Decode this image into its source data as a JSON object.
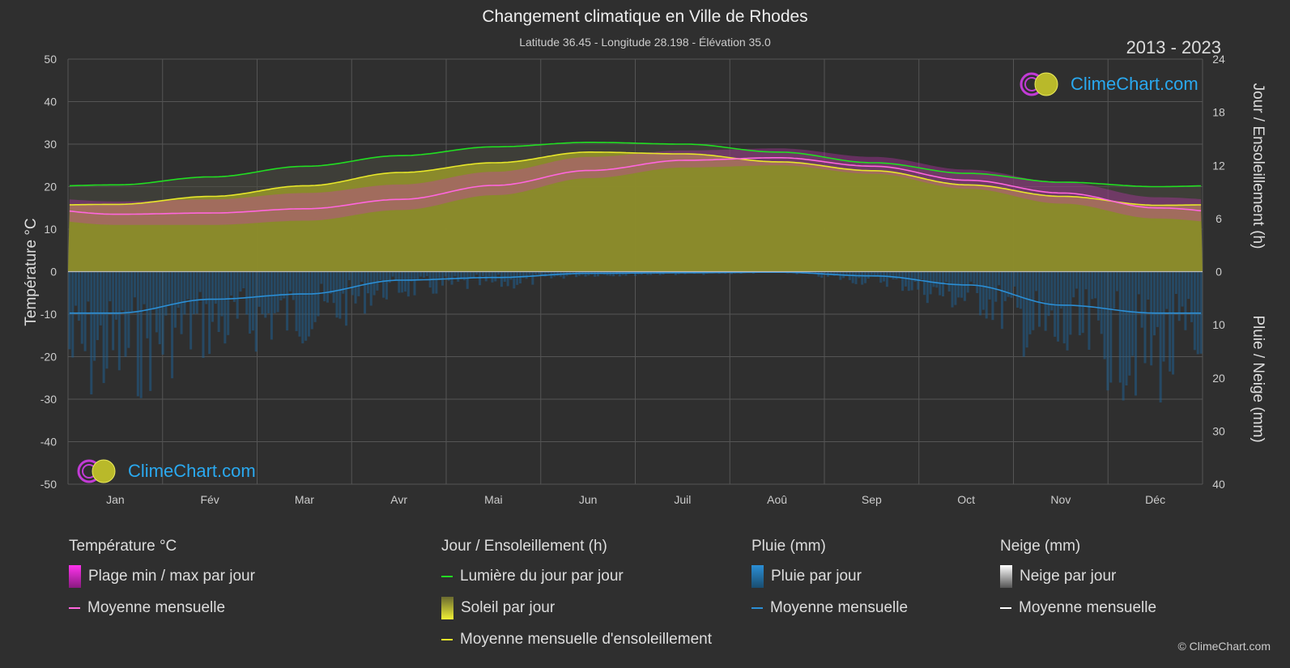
{
  "title": "Changement climatique en Ville de Rhodes",
  "subtitle": "Latitude 36.45 - Longitude 28.198 - Élévation 35.0",
  "years": "2013 - 2023",
  "logo_text": "ClimeChart.com",
  "copyright": "© ClimeChart.com",
  "colors": {
    "background": "#2f2f2f",
    "daylight": "#22dd22",
    "sunshine": "#e6e62a",
    "temp_mean": "#ff66dd",
    "temp_range": "#dd22cc",
    "rain": "#2b8fd6",
    "snow": "#ffffff"
  },
  "legend": {
    "temperature": {
      "header": "Température °C",
      "range_label": "Plage min / max par jour",
      "mean_label": "Moyenne mensuelle"
    },
    "sun": {
      "header": "Jour / Ensoleillement (h)",
      "daylight_label": "Lumière du jour par jour",
      "sunshine_label": "Soleil par jour",
      "sunshine_mean_label": "Moyenne mensuelle d'ensoleillement"
    },
    "rain": {
      "header": "Pluie (mm)",
      "daily_label": "Pluie par jour",
      "mean_label": "Moyenne mensuelle"
    },
    "snow": {
      "header": "Neige (mm)",
      "daily_label": "Neige par jour",
      "mean_label": "Moyenne mensuelle"
    }
  },
  "chart_data": {
    "type": "area",
    "categories": [
      "Jan",
      "Fév",
      "Mar",
      "Avr",
      "Mai",
      "Jun",
      "Juil",
      "Aoû",
      "Sep",
      "Oct",
      "Nov",
      "Déc"
    ],
    "y_left": {
      "label": "Température °C",
      "range": [
        -50,
        50
      ],
      "ticks": [
        50,
        40,
        30,
        20,
        10,
        0,
        -10,
        -20,
        -30,
        -40,
        -50
      ]
    },
    "y_right_top": {
      "label": "Jour / Ensoleillement (h)",
      "range": [
        0,
        24
      ],
      "ticks": [
        24,
        18,
        12,
        6,
        0
      ]
    },
    "y_right_bottom": {
      "label": "Pluie / Neige (mm)",
      "range": [
        0,
        40
      ],
      "ticks": [
        0,
        10,
        20,
        30,
        40
      ]
    },
    "grid": true,
    "series": [
      {
        "name": "Lumière du jour par jour",
        "unit": "h",
        "values": [
          9.8,
          10.7,
          11.9,
          13.1,
          14.1,
          14.6,
          14.4,
          13.5,
          12.3,
          11.1,
          10.1,
          9.6
        ]
      },
      {
        "name": "Moyenne mensuelle d'ensoleillement",
        "unit": "h",
        "values": [
          7.6,
          8.5,
          9.7,
          11.2,
          12.3,
          13.5,
          13.3,
          12.4,
          11.4,
          9.8,
          8.5,
          7.5
        ]
      },
      {
        "name": "Moyenne mensuelle",
        "unit": "°C",
        "values": [
          13.5,
          13.8,
          14.8,
          17.0,
          20.3,
          23.8,
          26.2,
          26.8,
          24.8,
          21.5,
          18.5,
          15.0
        ]
      },
      {
        "name": "Plage min / max par jour",
        "unit": "°C",
        "min": [
          11.0,
          11.0,
          12.0,
          14.5,
          18.0,
          22.0,
          24.5,
          25.0,
          23.0,
          19.5,
          16.0,
          12.5
        ],
        "max": [
          16.5,
          17.0,
          18.5,
          20.5,
          23.5,
          27.0,
          28.5,
          29.0,
          27.0,
          24.0,
          21.0,
          17.5
        ]
      },
      {
        "name": "Moyenne mensuelle",
        "unit": "mm",
        "values": [
          7.8,
          5.2,
          4.2,
          1.6,
          1.1,
          0.3,
          0.2,
          0.1,
          0.8,
          2.5,
          6.3,
          7.8
        ]
      }
    ]
  }
}
